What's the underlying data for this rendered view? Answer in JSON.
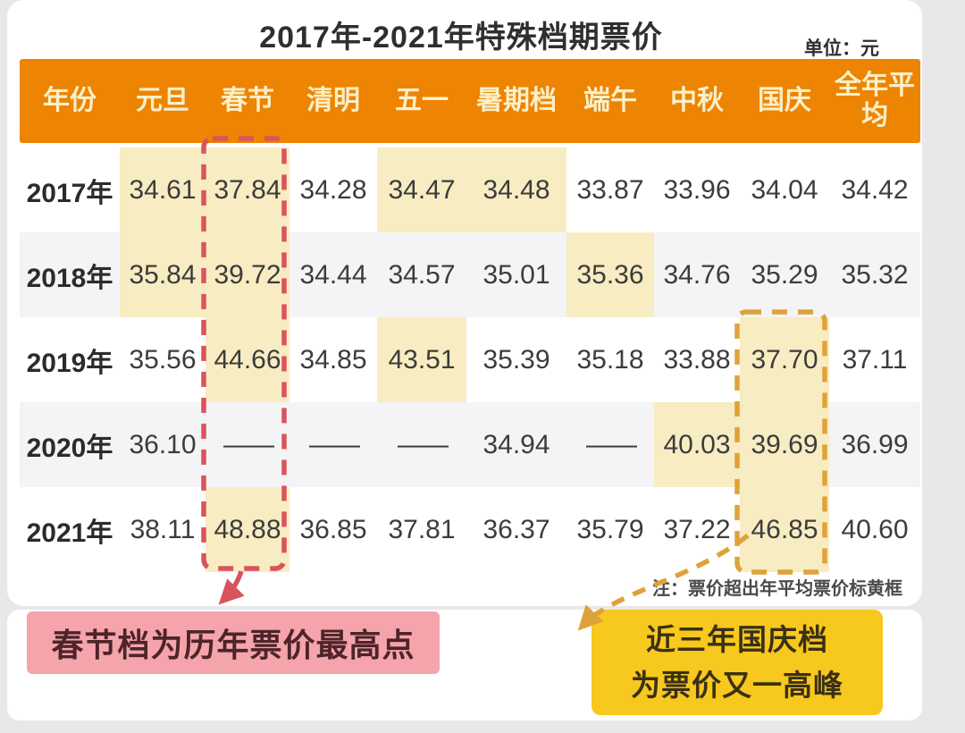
{
  "title": "2017年-2021年特殊档期票价",
  "unit_label": "单位：元",
  "note": "注：票价超出年平均票价标黄框",
  "callouts": {
    "spring_festival": "春节档为历年票价最高点",
    "national_day_line1": "近三年国庆档",
    "national_day_line2": "为票价又一高峰"
  },
  "chart_data": {
    "type": "table",
    "title": "2017年-2021年特殊档期票价",
    "unit": "单位：元",
    "columns": [
      "年份",
      "元旦",
      "春节",
      "清明",
      "五一",
      "暑期档",
      "端午",
      "中秋",
      "国庆",
      "全年平均"
    ],
    "rows": [
      {
        "year": "2017年",
        "values": [
          "34.61",
          "37.84",
          "34.28",
          "34.47",
          "34.48",
          "33.87",
          "33.96",
          "34.04",
          "34.42"
        ],
        "highlighted_cols": [
          "元旦",
          "春节",
          "五一",
          "暑期档"
        ]
      },
      {
        "year": "2018年",
        "values": [
          "35.84",
          "39.72",
          "34.44",
          "34.57",
          "35.01",
          "35.36",
          "34.76",
          "35.29",
          "35.32"
        ],
        "highlighted_cols": [
          "元旦",
          "春节",
          "端午"
        ]
      },
      {
        "year": "2019年",
        "values": [
          "35.56",
          "44.66",
          "34.85",
          "43.51",
          "35.39",
          "35.18",
          "33.88",
          "37.70",
          "37.11"
        ],
        "highlighted_cols": [
          "春节",
          "五一",
          "国庆"
        ]
      },
      {
        "year": "2020年",
        "values": [
          "36.10",
          "——",
          "——",
          "——",
          "34.94",
          "——",
          "40.03",
          "39.69",
          "36.99"
        ],
        "highlighted_cols": [
          "中秋",
          "国庆"
        ]
      },
      {
        "year": "2021年",
        "values": [
          "38.11",
          "48.88",
          "36.85",
          "37.81",
          "36.37",
          "35.79",
          "37.22",
          "46.85",
          "40.60"
        ],
        "highlighted_cols": [
          "春节",
          "国庆"
        ]
      }
    ],
    "note": "注：票价超出年平均票价标黄框",
    "annotations": [
      {
        "text": "春节档为历年票价最高点",
        "target_column": "春节",
        "style": "red-dashed-box"
      },
      {
        "text": "近三年国庆档为票价又一高峰",
        "target_column": "国庆",
        "target_rows": [
          "2019年",
          "2020年",
          "2021年"
        ],
        "style": "orange-dashed-box"
      }
    ]
  },
  "colors": {
    "header_bg": "#ed8402",
    "header_text": "#fbefc6",
    "highlight_bg": "#f8ecc2",
    "alt_row_bg": "#f4f3f5",
    "red_dash": "#d9545c",
    "orange_dash": "#dfa23a",
    "pink_callout_bg": "#f5a4ac",
    "pink_callout_text": "#4d2429",
    "yellow_callout_bg": "#f7c81d",
    "yellow_callout_text": "#3b3014"
  }
}
